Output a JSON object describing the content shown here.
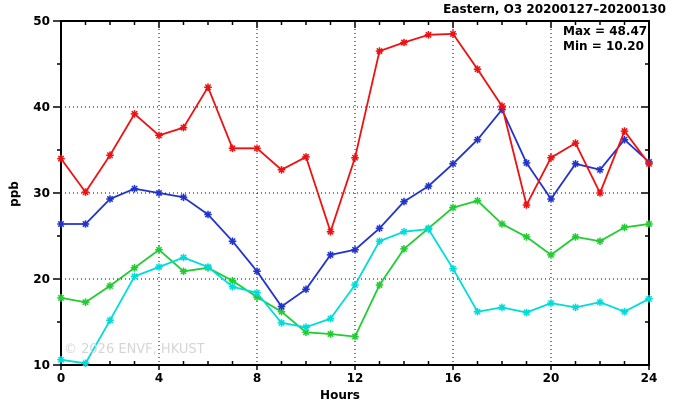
{
  "chart_data": {
    "type": "line",
    "title": "Eastern, O3 20200127–20200130",
    "xlabel": "Hours",
    "ylabel": "ppb",
    "annotations": {
      "max_label": "Max = 48.47",
      "min_label": "Min = 10.20",
      "max": 48.47,
      "min": 10.2
    },
    "watermark": "© 2026 ENVF, HKUST",
    "xlim": [
      0,
      24
    ],
    "ylim": [
      10,
      50
    ],
    "x_major_ticks": [
      0,
      4,
      8,
      12,
      16,
      20,
      24
    ],
    "y_major_ticks": [
      10,
      20,
      30,
      40,
      50
    ],
    "x_minor_step": 1,
    "y_minor_step": 5,
    "grid": {
      "show": true,
      "style": "dotted",
      "color": "#000000"
    },
    "legend": "none",
    "frame_color": "#000000",
    "x": [
      0,
      1,
      2,
      3,
      4,
      5,
      6,
      7,
      8,
      9,
      10,
      11,
      12,
      13,
      14,
      15,
      16,
      17,
      18,
      19,
      20,
      21,
      22,
      23,
      24
    ],
    "series": [
      {
        "name": "red",
        "color": "#ee1111",
        "values": [
          34.0,
          30.1,
          34.4,
          39.2,
          36.7,
          37.6,
          42.3,
          35.2,
          35.2,
          32.7,
          34.2,
          25.5,
          34.1,
          46.5,
          47.5,
          48.4,
          48.5,
          44.4,
          40.1,
          28.6,
          34.1,
          35.8,
          30.0,
          37.2,
          33.4
        ]
      },
      {
        "name": "blue",
        "color": "#2233cc",
        "values": [
          26.4,
          26.4,
          29.3,
          30.5,
          30.0,
          29.5,
          27.5,
          24.4,
          20.9,
          16.8,
          18.8,
          22.8,
          23.4,
          25.9,
          29.0,
          30.8,
          33.4,
          36.2,
          39.7,
          33.5,
          29.3,
          33.4,
          32.7,
          36.2,
          33.6
        ]
      },
      {
        "name": "green",
        "color": "#22cc33",
        "values": [
          17.8,
          17.3,
          19.2,
          21.3,
          23.4,
          20.9,
          21.3,
          19.8,
          17.9,
          16.2,
          13.8,
          13.6,
          13.3,
          19.3,
          23.5,
          25.9,
          28.3,
          29.1,
          26.4,
          24.9,
          22.8,
          24.9,
          24.4,
          26.0,
          26.4
        ]
      },
      {
        "name": "cyan",
        "color": "#00dcdc",
        "values": [
          10.6,
          10.2,
          15.2,
          20.3,
          21.4,
          22.5,
          21.4,
          19.1,
          18.4,
          14.9,
          14.4,
          15.4,
          19.3,
          24.4,
          25.5,
          25.8,
          21.2,
          16.2,
          16.7,
          16.1,
          17.2,
          16.7,
          17.3,
          16.2,
          17.7
        ]
      }
    ],
    "draw_order": [
      "green",
      "cyan",
      "blue",
      "red"
    ]
  }
}
